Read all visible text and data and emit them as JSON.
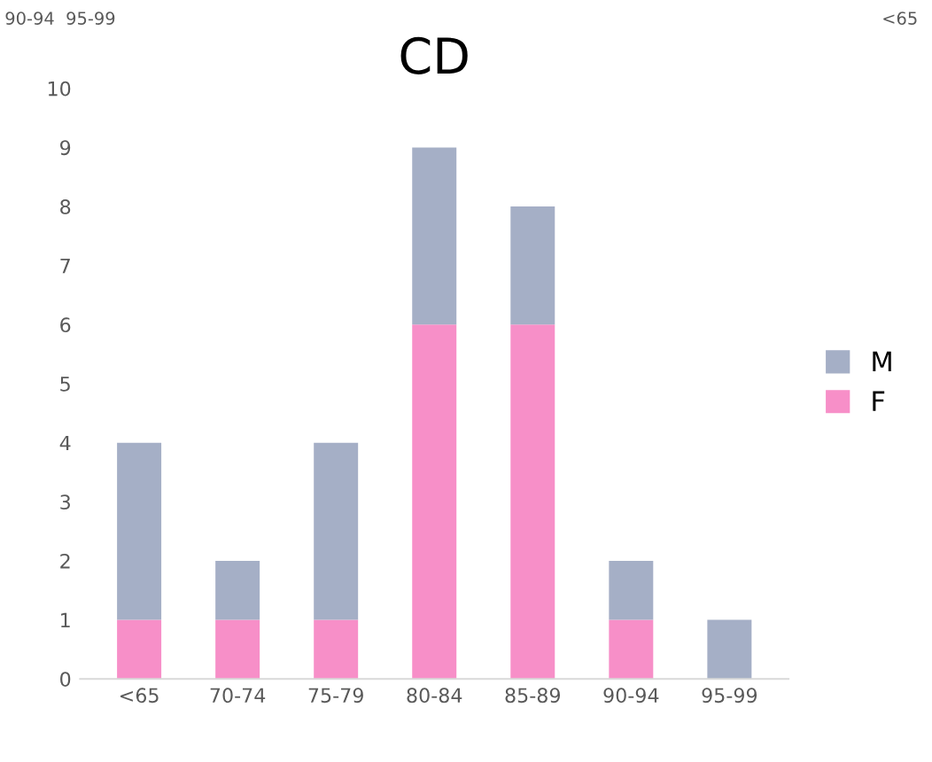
{
  "chart_data": {
    "type": "bar",
    "title": "CD",
    "stacked": true,
    "categories": [
      "<65",
      "70-74",
      "75-79",
      "80-84",
      "85-89",
      "90-94",
      "95-99"
    ],
    "series": [
      {
        "name": "F",
        "color": "#f78fc8",
        "values": [
          1,
          1,
          1,
          6,
          6,
          1,
          0
        ]
      },
      {
        "name": "M",
        "color": "#a5afc6",
        "values": [
          3,
          1,
          3,
          3,
          2,
          1,
          1
        ]
      }
    ],
    "ylim": [
      0,
      10
    ],
    "yticks": [
      0,
      1,
      2,
      3,
      4,
      5,
      6,
      7,
      8,
      9,
      10
    ],
    "grid": false,
    "legend": "right",
    "annotations": [
      "90-94  95-99",
      "<65"
    ]
  }
}
